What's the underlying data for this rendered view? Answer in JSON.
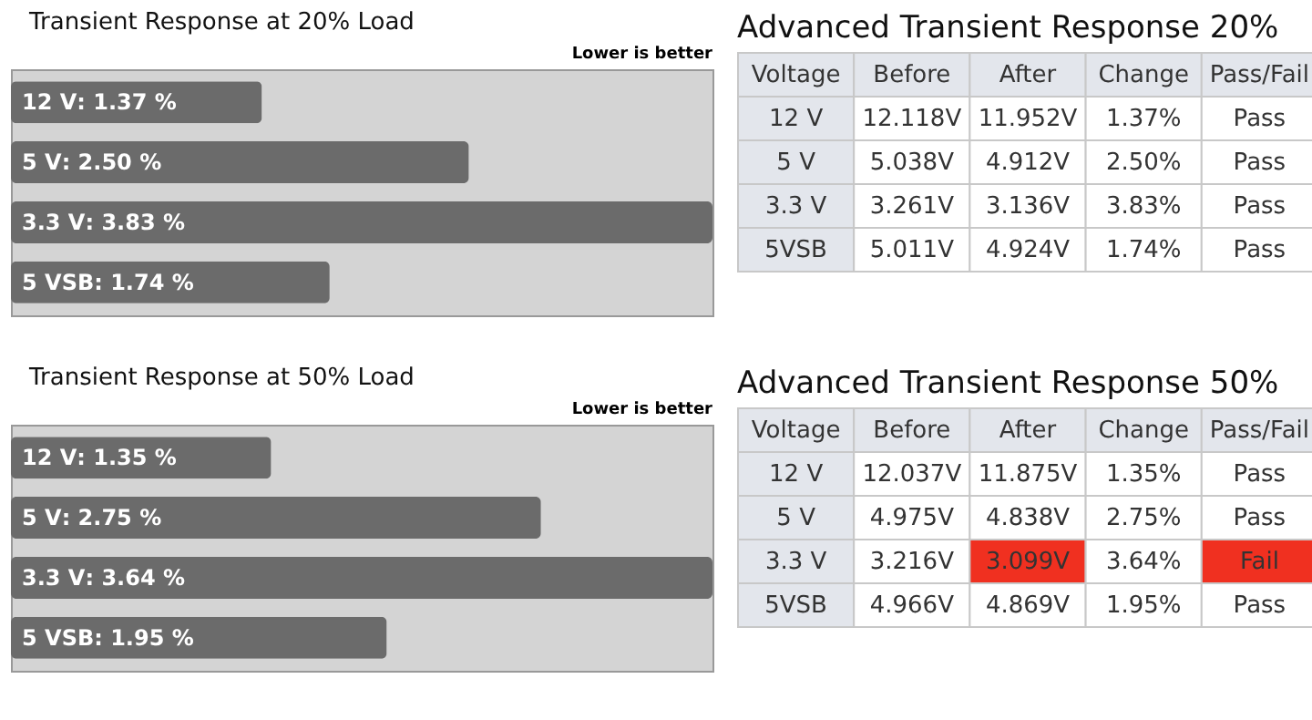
{
  "chart_data": [
    {
      "type": "bar",
      "orientation": "horizontal",
      "title": "Transient Response at 20% Load",
      "annotations": [
        "Lower is better"
      ],
      "categories": [
        "12 V",
        "5 V",
        "3.3 V",
        "5 VSB"
      ],
      "values": [
        1.37,
        2.5,
        3.83,
        1.74
      ],
      "value_labels": [
        ": 1.37 %",
        ": 2.50 %",
        ": 3.83 %",
        ": 1.74 %"
      ],
      "color": "#6b6b6b",
      "tick_labels": false
    },
    {
      "type": "other",
      "title": "Advanced Transient Response 20%",
      "categories": [
        "Voltage",
        "Before",
        "After",
        "Change",
        "Pass/Fail"
      ],
      "annotations": [
        "12 V",
        "12.118V",
        "11.952V",
        "1.37%",
        "Pass",
        "5 V",
        "5.038V",
        "4.912V",
        "2.50%",
        "Pass",
        "3.3 V",
        "3.261V",
        "3.136V",
        "3.83%",
        "Pass",
        "5VSB",
        "5.011V",
        "4.924V",
        "1.74%",
        "Pass"
      ]
    },
    {
      "type": "bar",
      "orientation": "horizontal",
      "title": "Transient Response at 50% Load",
      "annotations": [
        "Lower is better"
      ],
      "categories": [
        "12 V",
        "5 V",
        "3.3 V",
        "5 VSB"
      ],
      "values": [
        1.35,
        2.75,
        3.64,
        1.95
      ],
      "value_labels": [
        ": 1.35 %",
        ": 2.75 %",
        ": 3.64 %",
        ": 1.95 %"
      ],
      "color": "#6b6b6b",
      "tick_labels": false
    },
    {
      "type": "other",
      "title": "Advanced Transient Response 50%",
      "categories": [
        "Voltage",
        "Before",
        "After",
        "Change",
        "Pass/Fail"
      ],
      "annotations": [
        "12 V",
        "12.037V",
        "11.875V",
        "1.35%",
        "Pass",
        "5 V",
        "4.975V",
        "4.838V",
        "2.75%",
        "Pass",
        "3.3 V",
        "3.216V",
        "3.099V",
        "3.64%",
        "Fail",
        "5VSB",
        "4.966V",
        "4.869V",
        "1.95%",
        "Pass"
      ],
      "colors": [
        null,
        null,
        null,
        null,
        null,
        null,
        null,
        null,
        null,
        null,
        null,
        null,
        "#f03020",
        null,
        "#f03020",
        null,
        null,
        null,
        null,
        null
      ]
    }
  ]
}
